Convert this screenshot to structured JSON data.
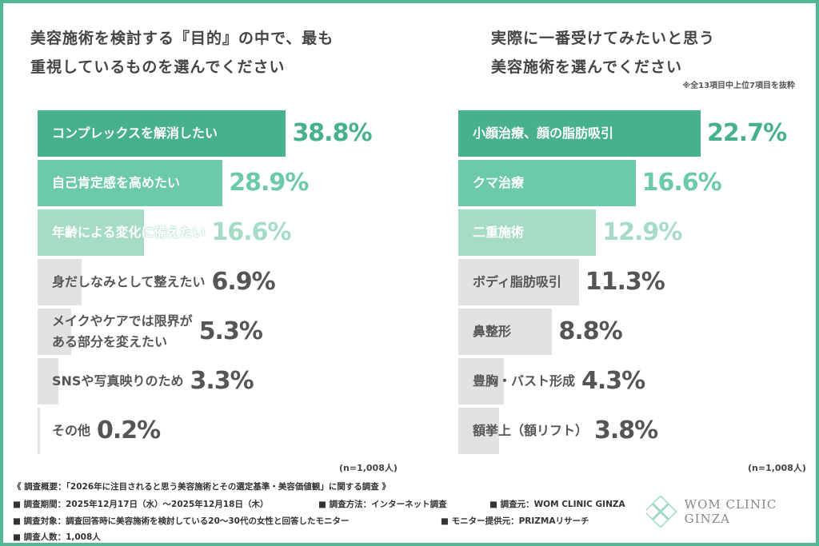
{
  "chart_data": [
    {
      "type": "bar",
      "orientation": "horizontal",
      "title": "美容施術を検討する『目的』の中で、最も\n重視しているものを選んでください",
      "categories": [
        "コンプレックスを解消したい",
        "自己肯定感を高めたい",
        "年齢による変化に備えたい",
        "身だしなみとして整えたい",
        "メイクやケアでは限界が\nある部分を変えたい",
        "SNSや写真映りのため",
        "その他"
      ],
      "values": [
        38.8,
        28.9,
        16.6,
        6.9,
        5.3,
        3.3,
        0.2
      ],
      "labels": [
        "38.8%",
        "28.9%",
        "16.6%",
        "6.9%",
        "5.3%",
        "3.3%",
        "0.2%"
      ],
      "colors": [
        "#47b08e",
        "#6ccaa8",
        "#a6dcc6",
        "#e2e2e2",
        "#e2e2e2",
        "#e2e2e2",
        "#e2e2e2"
      ],
      "note_n": "(n=1,008人)"
    },
    {
      "type": "bar",
      "orientation": "horizontal",
      "title": "実際に一番受けてみたいと思う\n美容施術を選んでください",
      "subtitle": "※全13項目中上位7項目を抜粋",
      "categories": [
        "小顔治療、顔の脂肪吸引",
        "クマ治療",
        "二重施術",
        "ボディ脂肪吸引",
        "鼻整形",
        "豊胸・バスト形成",
        "額挙上（額リフト）"
      ],
      "values": [
        22.7,
        16.6,
        12.9,
        11.3,
        8.8,
        4.3,
        3.8
      ],
      "labels": [
        "22.7%",
        "16.6%",
        "12.9%",
        "11.3%",
        "8.8%",
        "4.3%",
        "3.8%"
      ],
      "colors": [
        "#47b08e",
        "#6ccaa8",
        "#a6dcc6",
        "#e2e2e2",
        "#e2e2e2",
        "#e2e2e2",
        "#e2e2e2"
      ],
      "note_n": "(n=1,008人)"
    }
  ],
  "footer": {
    "summary": "《 調査概要：「2026年に注目されると思う美容施術とその選定基準・美容価値観」に関する調査 》",
    "period": "■ 調査期間：2025年12月17日（水）～2025年12月18日（木）",
    "method": "■ 調査方法：インターネット調査",
    "source": "■ 調査元：WOM CLINIC GINZA",
    "target": "■ 調査対象：調査回答時に美容施術を検討している20～30代の女性と回答したモニター",
    "provider": "■ モニター提供元：PRIZMAリサーチ",
    "count": "■ 調査人数：1,008人"
  },
  "logo": {
    "text": "WOM CLINIC GINZA"
  },
  "text_colors": {
    "dark": "#555555"
  }
}
